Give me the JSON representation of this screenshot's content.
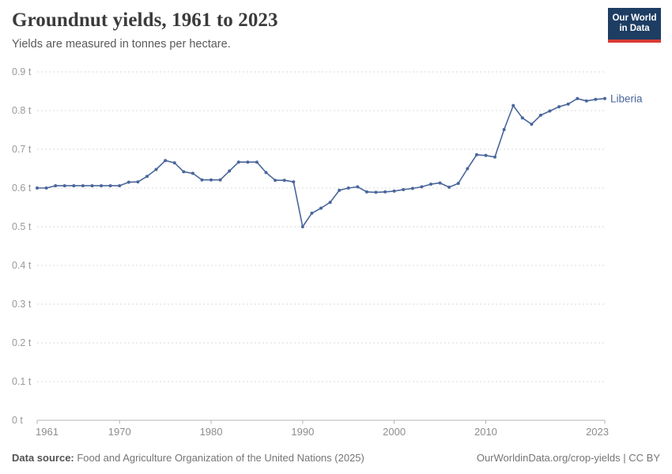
{
  "header": {
    "title": "Groundnut yields, 1961 to 2023",
    "subtitle": "Yields are measured in tonnes per hectare.",
    "logo_line1": "Our World",
    "logo_line2": "in Data"
  },
  "footer": {
    "source_label": "Data source:",
    "source_text": " Food and Agriculture Organization of the United Nations (2025)",
    "attribution": "OurWorldinData.org/crop-yields | CC BY"
  },
  "colors": {
    "line": "#4a669b",
    "marker": "#4a669b",
    "grid": "#dadada",
    "axis_line": "#b3b3b3",
    "logo_bg": "#1d3d63",
    "logo_accent": "#d93a34"
  },
  "chart_data": {
    "type": "line",
    "title": "Groundnut yields, 1961 to 2023",
    "ylabel": "tonnes per hectare",
    "series_name": "Liberia",
    "ylim": [
      0,
      0.9
    ],
    "grid": "horizontal-dashed",
    "legend_position": "end-of-line",
    "yticks": [
      {
        "value": 0.0,
        "label": "0 t"
      },
      {
        "value": 0.1,
        "label": "0.1 t"
      },
      {
        "value": 0.2,
        "label": "0.2 t"
      },
      {
        "value": 0.3,
        "label": "0.3 t"
      },
      {
        "value": 0.4,
        "label": "0.4 t"
      },
      {
        "value": 0.5,
        "label": "0.5 t"
      },
      {
        "value": 0.6,
        "label": "0.6 t"
      },
      {
        "value": 0.7,
        "label": "0.7 t"
      },
      {
        "value": 0.8,
        "label": "0.8 t"
      },
      {
        "value": 0.9,
        "label": "0.9 t"
      }
    ],
    "xticks": [
      1961,
      1970,
      1980,
      1990,
      2000,
      2010,
      2023
    ],
    "x": [
      1961,
      1962,
      1963,
      1964,
      1965,
      1966,
      1967,
      1968,
      1969,
      1970,
      1971,
      1972,
      1973,
      1974,
      1975,
      1976,
      1977,
      1978,
      1979,
      1980,
      1981,
      1982,
      1983,
      1984,
      1985,
      1986,
      1987,
      1988,
      1989,
      1990,
      1991,
      1992,
      1993,
      1994,
      1995,
      1996,
      1997,
      1998,
      1999,
      2000,
      2001,
      2002,
      2003,
      2004,
      2005,
      2006,
      2007,
      2008,
      2009,
      2010,
      2011,
      2012,
      2013,
      2014,
      2015,
      2016,
      2017,
      2018,
      2019,
      2020,
      2021,
      2022,
      2023
    ],
    "y": [
      0.6,
      0.6,
      0.606,
      0.606,
      0.606,
      0.606,
      0.606,
      0.606,
      0.606,
      0.606,
      0.615,
      0.616,
      0.63,
      0.648,
      0.671,
      0.665,
      0.642,
      0.638,
      0.621,
      0.621,
      0.621,
      0.644,
      0.667,
      0.667,
      0.667,
      0.64,
      0.62,
      0.62,
      0.616,
      0.5,
      0.535,
      0.548,
      0.563,
      0.594,
      0.6,
      0.603,
      0.59,
      0.589,
      0.59,
      0.592,
      0.596,
      0.599,
      0.603,
      0.61,
      0.613,
      0.602,
      0.612,
      0.65,
      0.686,
      0.684,
      0.68,
      0.751,
      0.813,
      0.781,
      0.765,
      0.788,
      0.799,
      0.81,
      0.817,
      0.831,
      0.825,
      0.829,
      0.831
    ]
  }
}
